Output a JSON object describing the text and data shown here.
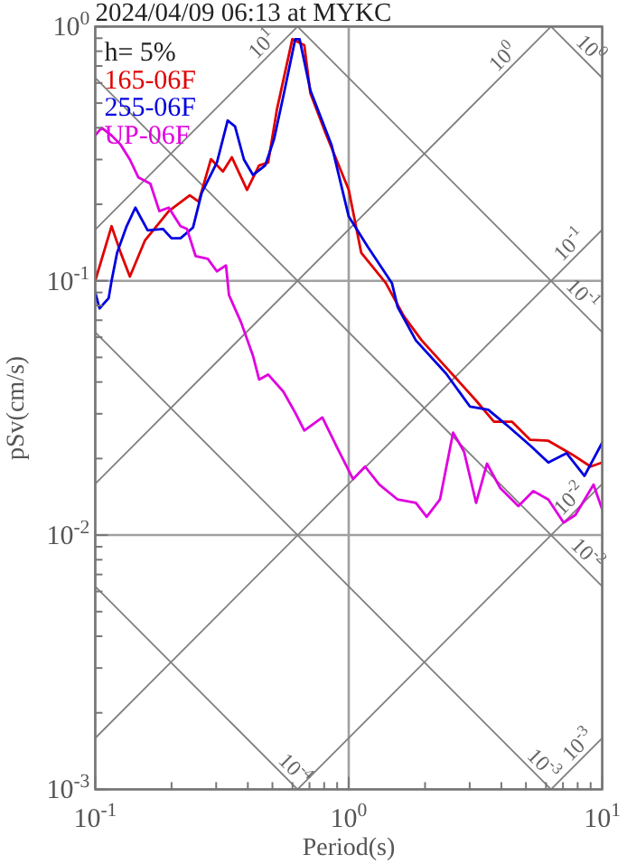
{
  "chart_data": {
    "type": "line",
    "title": "2024/04/09 06:13 at MYKC",
    "xlabel": "Period(s)",
    "ylabel": "pSv(cm/s)",
    "log": "xy",
    "grid": true,
    "legend": "top left",
    "xlim": [
      0.1,
      10
    ],
    "ylim": [
      0.001,
      1
    ],
    "xticks": [
      {
        "value": 0.1,
        "label": "10$^{-1}$"
      },
      {
        "value": 0.2,
        "label": null
      },
      {
        "value": 0.3,
        "label": null
      },
      {
        "value": 0.4,
        "label": null
      },
      {
        "value": 0.5,
        "label": null
      },
      {
        "value": 0.6,
        "label": null
      },
      {
        "value": 0.7,
        "label": null
      },
      {
        "value": 0.8,
        "label": null
      },
      {
        "value": 0.9,
        "label": null
      },
      {
        "value": 1,
        "label": "10$^{0}$"
      },
      {
        "value": 2,
        "label": null
      },
      {
        "value": 3,
        "label": null
      },
      {
        "value": 4,
        "label": null
      },
      {
        "value": 5,
        "label": null
      },
      {
        "value": 6,
        "label": null
      },
      {
        "value": 7,
        "label": null
      },
      {
        "value": 8,
        "label": null
      },
      {
        "value": 9,
        "label": null
      },
      {
        "value": 10,
        "label": "10$^{1}$"
      }
    ],
    "yticks": [
      {
        "value": 0.001,
        "label": "10$^{-3}$"
      },
      {
        "value": 0.002,
        "label": null
      },
      {
        "value": 0.003,
        "label": null
      },
      {
        "value": 0.004,
        "label": null
      },
      {
        "value": 0.005,
        "label": null
      },
      {
        "value": 0.006,
        "label": null
      },
      {
        "value": 0.007,
        "label": null
      },
      {
        "value": 0.008,
        "label": null
      },
      {
        "value": 0.009,
        "label": null
      },
      {
        "value": 0.01,
        "label": "10$^{-2}$"
      },
      {
        "value": 0.02,
        "label": null
      },
      {
        "value": 0.03,
        "label": null
      },
      {
        "value": 0.04,
        "label": null
      },
      {
        "value": 0.05,
        "label": null
      },
      {
        "value": 0.06,
        "label": null
      },
      {
        "value": 0.07,
        "label": null
      },
      {
        "value": 0.08,
        "label": null
      },
      {
        "value": 0.09,
        "label": null
      },
      {
        "value": 0.1,
        "label": "10$^{-1}$"
      },
      {
        "value": 0.2,
        "label": null
      },
      {
        "value": 0.3,
        "label": null
      },
      {
        "value": 0.4,
        "label": null
      },
      {
        "value": 0.5,
        "label": null
      },
      {
        "value": 0.6,
        "label": null
      },
      {
        "value": 0.7,
        "label": null
      },
      {
        "value": 0.8,
        "label": null
      },
      {
        "value": 0.9,
        "label": null
      },
      {
        "value": 1,
        "label": "10$^{0}$"
      }
    ],
    "annotations": [
      "h= 5%",
      {
        "text": "10$^{1}$",
        "x": 0.494,
        "y": 0.786
      },
      {
        "text": "10$^{0}$",
        "x": 4.4,
        "y": 0.7
      },
      {
        "text": "10$^{-1}$",
        "x": 8.05,
        "y": 0.128
      },
      {
        "text": "10$^{-2}$",
        "x": 8.05,
        "y": 0.0128
      },
      {
        "text": "10$^{-3}$",
        "x": 8.7,
        "y": 0.00138
      },
      {
        "text": "10$^{0}$",
        "x": 8.3,
        "y": 0.757
      },
      {
        "text": "10$^{-1}$",
        "x": 7.7,
        "y": 0.0816
      },
      {
        "text": "10$^{-2}$",
        "x": 8.05,
        "y": 0.0078
      },
      {
        "text": "10$^{-3}$",
        "x": 5.4,
        "y": 0.00116
      },
      {
        "text": "10$^{-4}$",
        "x": 0.564,
        "y": 0.00111
      }
    ],
    "series": [
      {
        "type": "line",
        "color": "#808080",
        "x": [
          0.1,
          0.628
        ],
        "values": [
          0.159,
          1
        ]
      },
      {
        "type": "line",
        "color": "#808080",
        "x": [
          0.1,
          6.28
        ],
        "values": [
          0.0159,
          1
        ]
      },
      {
        "type": "line",
        "color": "#808080",
        "x": [
          0.1,
          10
        ],
        "values": [
          0.00159,
          0.159
        ]
      },
      {
        "type": "line",
        "color": "#808080",
        "x": [
          0.628,
          10
        ],
        "values": [
          0.001,
          0.0159
        ]
      },
      {
        "type": "line",
        "color": "#808080",
        "x": [
          6.28,
          10
        ],
        "values": [
          0.001,
          0.00159
        ]
      },
      {
        "type": "line",
        "color": "#808080",
        "x": [
          6.28,
          10
        ],
        "values": [
          1,
          0.628
        ]
      },
      {
        "type": "line",
        "color": "#808080",
        "x": [
          0.628,
          10
        ],
        "values": [
          1,
          0.0628
        ]
      },
      {
        "type": "line",
        "color": "#808080",
        "x": [
          0.1,
          10
        ],
        "values": [
          0.628,
          0.00628
        ]
      },
      {
        "type": "line",
        "color": "#808080",
        "x": [
          0.1,
          6.28
        ],
        "values": [
          0.0628,
          0.001
        ]
      },
      {
        "type": "line",
        "color": "#808080",
        "x": [
          0.1,
          0.628
        ],
        "values": [
          0.00628,
          0.001
        ]
      },
      {
        "name": "165-06F",
        "color": "#e00000",
        "x": [
          0.1,
          0.116,
          0.126,
          0.137,
          0.157,
          0.195,
          0.236,
          0.256,
          0.286,
          0.319,
          0.346,
          0.397,
          0.443,
          0.481,
          0.522,
          0.599,
          0.668,
          0.706,
          0.809,
          1.0,
          1.12,
          1.4,
          1.65,
          1.94,
          2.42,
          3.18,
          3.74,
          4.41,
          5.2,
          6.13,
          7.64,
          9.0,
          10
        ],
        "values": [
          0.1,
          0.164,
          0.129,
          0.104,
          0.144,
          0.188,
          0.217,
          0.205,
          0.301,
          0.269,
          0.306,
          0.228,
          0.284,
          0.292,
          0.477,
          0.892,
          0.845,
          0.546,
          0.383,
          0.228,
          0.129,
          0.098,
          0.0726,
          0.0583,
          0.0457,
          0.0338,
          0.0279,
          0.0279,
          0.0237,
          0.0235,
          0.0207,
          0.0186,
          0.0193
        ]
      },
      {
        "name": "255-06F",
        "color": "#0000e0",
        "x": [
          0.1,
          0.104,
          0.113,
          0.116,
          0.122,
          0.133,
          0.144,
          0.161,
          0.185,
          0.2,
          0.217,
          0.243,
          0.263,
          0.302,
          0.333,
          0.356,
          0.386,
          0.419,
          0.468,
          0.508,
          0.552,
          0.615,
          0.64,
          0.706,
          0.855,
          1.0,
          1.19,
          1.48,
          1.56,
          1.84,
          2.42,
          3.01,
          3.55,
          4.18,
          5.2,
          6.13,
          7.23,
          8.51,
          10
        ],
        "values": [
          0.0902,
          0.0779,
          0.0855,
          0.1,
          0.129,
          0.164,
          0.194,
          0.158,
          0.16,
          0.147,
          0.147,
          0.162,
          0.222,
          0.292,
          0.427,
          0.405,
          0.3,
          0.261,
          0.284,
          0.362,
          0.532,
          0.892,
          0.892,
          0.561,
          0.343,
          0.179,
          0.136,
          0.098,
          0.0788,
          0.0583,
          0.0432,
          0.032,
          0.0311,
          0.0272,
          0.0225,
          0.0193,
          0.021,
          0.0171,
          0.0231
        ]
      },
      {
        "name": "UP-06F",
        "color": "#e000e0",
        "x": [
          0.1,
          0.106,
          0.116,
          0.126,
          0.137,
          0.148,
          0.165,
          0.179,
          0.195,
          0.217,
          0.23,
          0.249,
          0.278,
          0.302,
          0.328,
          0.337,
          0.376,
          0.419,
          0.443,
          0.481,
          0.552,
          0.615,
          0.668,
          0.787,
          0.904,
          1.04,
          1.16,
          1.32,
          1.56,
          1.84,
          2.03,
          2.29,
          2.58,
          2.85,
          3.18,
          3.51,
          3.96,
          4.67,
          5.35,
          6.13,
          7.04,
          7.84,
          9.24,
          10
        ],
        "values": [
          0.373,
          0.4,
          0.373,
          0.343,
          0.3,
          0.255,
          0.241,
          0.188,
          0.194,
          0.164,
          0.16,
          0.125,
          0.122,
          0.109,
          0.115,
          0.0879,
          0.0687,
          0.0508,
          0.0409,
          0.0428,
          0.0367,
          0.0303,
          0.0258,
          0.029,
          0.0219,
          0.0166,
          0.0186,
          0.0158,
          0.0138,
          0.0134,
          0.0118,
          0.0138,
          0.0253,
          0.0213,
          0.0134,
          0.0191,
          0.0153,
          0.013,
          0.0149,
          0.0138,
          0.0112,
          0.012,
          0.0158,
          0.0126
        ]
      }
    ]
  }
}
